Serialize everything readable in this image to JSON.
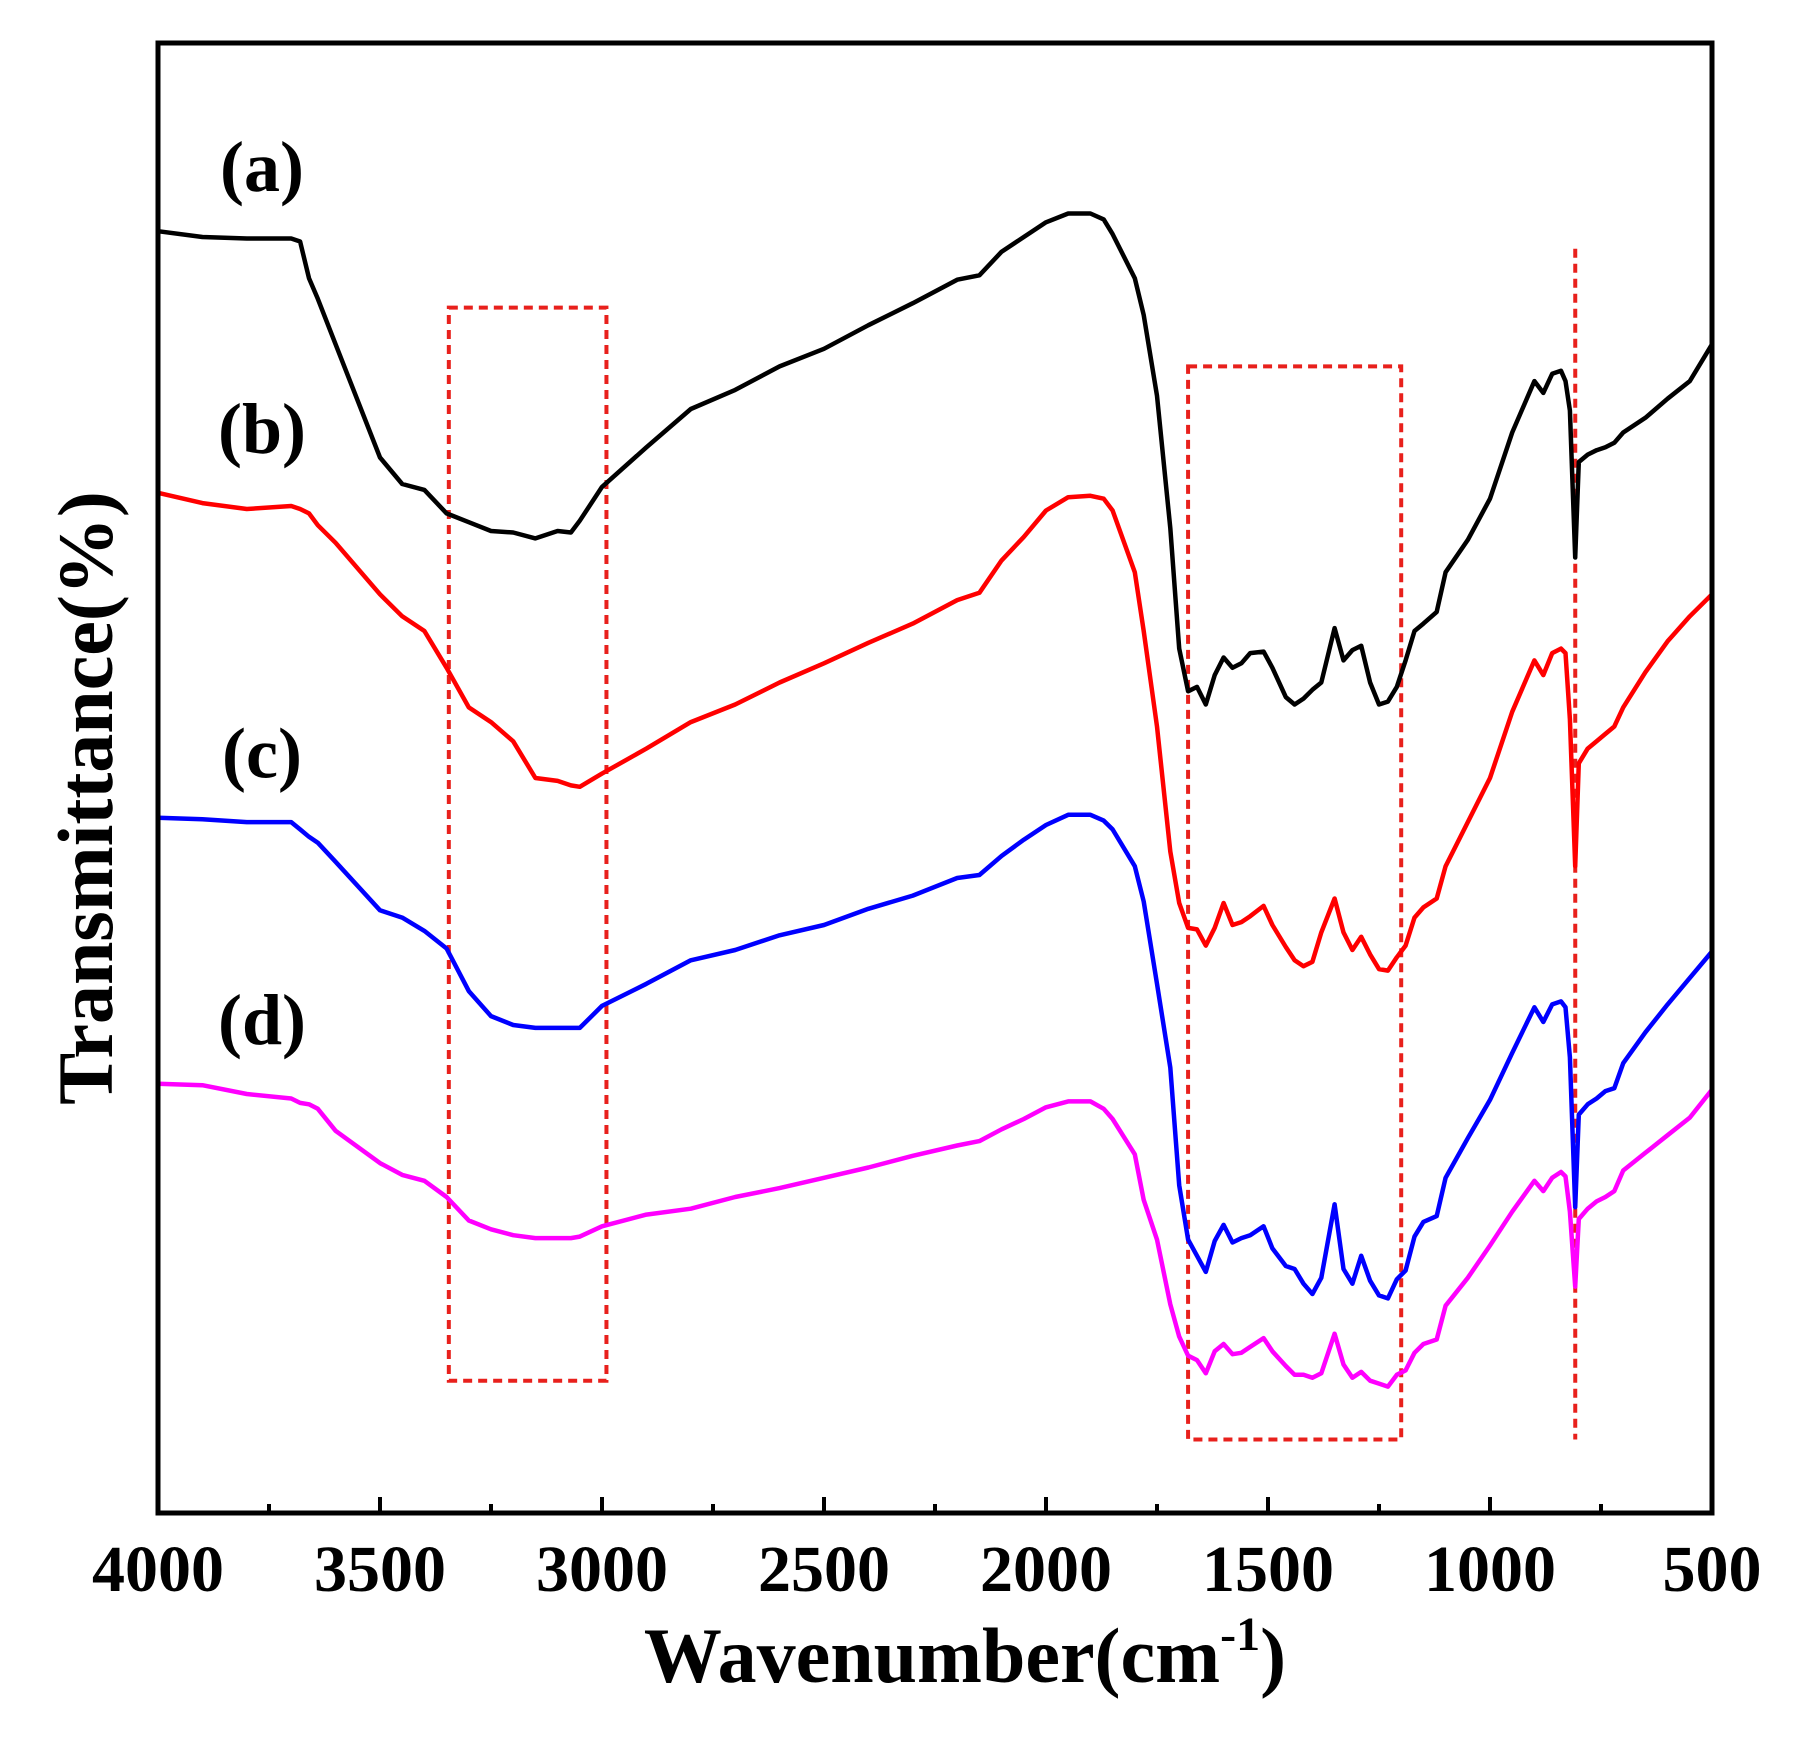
{
  "chart_data": {
    "type": "line",
    "title": "",
    "xlabel": "Wavenumber(cm",
    "xlabel_superscript": "-1",
    "xlabel_close": ")",
    "ylabel": "Transmittance(%)",
    "xlim": [
      4000,
      500
    ],
    "x_reversed": true,
    "y_ticks_shown": false,
    "grid": false,
    "xticks": [
      4000,
      3500,
      3000,
      2500,
      2000,
      1500,
      1000,
      500
    ],
    "xtick_labels": [
      "4000",
      "3500",
      "3000",
      "2500",
      "2000",
      "1500",
      "1000",
      "500"
    ],
    "y_units": "relative transmittance (stacked, arbitrary offsets)",
    "ylim": [
      0,
      100
    ],
    "highlight_color": "#e8201c",
    "highlights": [
      {
        "name": "O-H region box",
        "x_range": [
          3345,
          2990
        ],
        "y_range": [
          9,
          82
        ]
      },
      {
        "name": "fingerprint region box",
        "x_range": [
          1680,
          1200
        ],
        "y_range": [
          5,
          78
        ]
      },
      {
        "name": "808 cm-1 line",
        "x": 808,
        "y_range": [
          5,
          86
        ]
      }
    ],
    "x": [
      4000,
      3900,
      3800,
      3700,
      3680,
      3660,
      3640,
      3600,
      3500,
      3450,
      3400,
      3350,
      3300,
      3250,
      3200,
      3150,
      3100,
      3070,
      3050,
      3000,
      2900,
      2800,
      2700,
      2600,
      2500,
      2400,
      2300,
      2200,
      2150,
      2100,
      2050,
      2000,
      1950,
      1900,
      1870,
      1850,
      1800,
      1780,
      1750,
      1720,
      1700,
      1680,
      1660,
      1640,
      1620,
      1600,
      1580,
      1560,
      1540,
      1510,
      1490,
      1460,
      1440,
      1420,
      1400,
      1380,
      1350,
      1330,
      1310,
      1290,
      1270,
      1250,
      1230,
      1210,
      1190,
      1170,
      1150,
      1120,
      1100,
      1050,
      1000,
      950,
      900,
      880,
      860,
      840,
      830,
      820,
      808,
      800,
      780,
      760,
      740,
      720,
      700,
      650,
      600,
      550,
      500
    ],
    "series": [
      {
        "name": "(a)",
        "color": "#000000",
        "values": [
          87.2,
          86.8,
          86.7,
          86.7,
          86.5,
          84.0,
          82.6,
          79.5,
          71.8,
          70.0,
          69.6,
          68.0,
          67.4,
          66.8,
          66.7,
          66.3,
          66.8,
          66.7,
          67.5,
          69.8,
          72.5,
          75.1,
          76.4,
          78.0,
          79.2,
          80.8,
          82.3,
          83.9,
          84.2,
          85.8,
          86.8,
          87.8,
          88.4,
          88.4,
          88.0,
          87.0,
          84.0,
          81.5,
          76.0,
          67.0,
          58.8,
          55.9,
          56.2,
          55.0,
          57.0,
          58.2,
          57.5,
          57.8,
          58.5,
          58.6,
          57.5,
          55.5,
          55.0,
          55.4,
          56.0,
          56.5,
          60.2,
          58.0,
          58.7,
          59.0,
          56.5,
          55.0,
          55.2,
          56.2,
          58.0,
          60.0,
          60.5,
          61.3,
          64.0,
          66.2,
          69.0,
          73.5,
          77.0,
          76.2,
          77.5,
          77.7,
          77.0,
          75.0,
          65.0,
          71.5,
          72.0,
          72.3,
          72.5,
          72.8,
          73.5,
          74.5,
          75.8,
          77.0,
          79.5
        ]
      },
      {
        "name": "(b)",
        "color": "#ff0000",
        "values": [
          69.4,
          68.7,
          68.3,
          68.5,
          68.3,
          68.0,
          67.2,
          66.0,
          62.5,
          61.0,
          60.0,
          57.5,
          54.8,
          53.8,
          52.5,
          50.0,
          49.8,
          49.5,
          49.4,
          50.3,
          52.0,
          53.8,
          55.0,
          56.5,
          57.8,
          59.2,
          60.5,
          62.1,
          62.6,
          64.8,
          66.4,
          68.2,
          69.1,
          69.2,
          69.0,
          68.2,
          64.0,
          60.0,
          53.5,
          45.0,
          41.5,
          39.8,
          39.7,
          38.6,
          39.8,
          41.5,
          40.0,
          40.2,
          40.6,
          41.3,
          40.0,
          38.5,
          37.6,
          37.2,
          37.5,
          39.5,
          41.8,
          39.5,
          38.3,
          39.2,
          38.0,
          37.0,
          36.9,
          37.8,
          38.6,
          40.5,
          41.2,
          41.8,
          44.0,
          47.0,
          50.0,
          54.5,
          58.0,
          57.0,
          58.5,
          58.8,
          58.5,
          54.0,
          44.0,
          51.0,
          52.0,
          52.5,
          53.0,
          53.5,
          54.8,
          57.2,
          59.3,
          61.0,
          62.5
        ]
      },
      {
        "name": "(c)",
        "color": "#0000ff",
        "values": [
          47.3,
          47.2,
          47.0,
          47.0,
          46.5,
          46.0,
          45.6,
          44.3,
          41.0,
          40.5,
          39.6,
          38.4,
          35.5,
          33.8,
          33.2,
          33.0,
          33.0,
          33.0,
          33.0,
          34.5,
          36.0,
          37.6,
          38.3,
          39.3,
          40.0,
          41.1,
          42.0,
          43.2,
          43.4,
          44.7,
          45.8,
          46.8,
          47.5,
          47.5,
          47.1,
          46.5,
          44.0,
          41.6,
          36.0,
          30.3,
          22.3,
          18.6,
          17.5,
          16.4,
          18.5,
          19.6,
          18.4,
          18.7,
          18.9,
          19.5,
          18.0,
          16.8,
          16.6,
          15.6,
          14.9,
          16.0,
          21.0,
          16.6,
          15.6,
          17.5,
          15.8,
          14.8,
          14.6,
          15.9,
          16.5,
          18.8,
          19.8,
          20.2,
          22.8,
          25.5,
          28.1,
          31.3,
          34.4,
          33.4,
          34.6,
          34.8,
          34.4,
          31.0,
          20.8,
          27.1,
          27.8,
          28.2,
          28.7,
          28.9,
          30.6,
          32.7,
          34.6,
          36.4,
          38.2
        ]
      },
      {
        "name": "(d)",
        "color": "#ff00ff",
        "values": [
          29.2,
          29.1,
          28.5,
          28.2,
          27.9,
          27.8,
          27.5,
          26.0,
          23.8,
          23.0,
          22.6,
          21.5,
          19.9,
          19.3,
          18.9,
          18.7,
          18.7,
          18.7,
          18.8,
          19.5,
          20.3,
          20.7,
          21.5,
          22.1,
          22.8,
          23.5,
          24.3,
          25.0,
          25.3,
          26.1,
          26.8,
          27.6,
          28.0,
          28.0,
          27.5,
          26.8,
          24.4,
          21.3,
          18.6,
          14.2,
          12.0,
          10.7,
          10.4,
          9.5,
          11.0,
          11.5,
          10.8,
          10.9,
          11.3,
          11.9,
          11.0,
          10.0,
          9.4,
          9.4,
          9.2,
          9.5,
          12.2,
          10.1,
          9.2,
          9.6,
          9.0,
          8.8,
          8.6,
          9.4,
          9.7,
          10.9,
          11.5,
          11.8,
          14.1,
          16.0,
          18.2,
          20.5,
          22.6,
          21.9,
          22.8,
          23.2,
          22.9,
          20.5,
          15.4,
          20.0,
          20.7,
          21.2,
          21.5,
          21.9,
          23.3,
          24.5,
          25.7,
          26.9,
          28.8
        ]
      }
    ]
  }
}
